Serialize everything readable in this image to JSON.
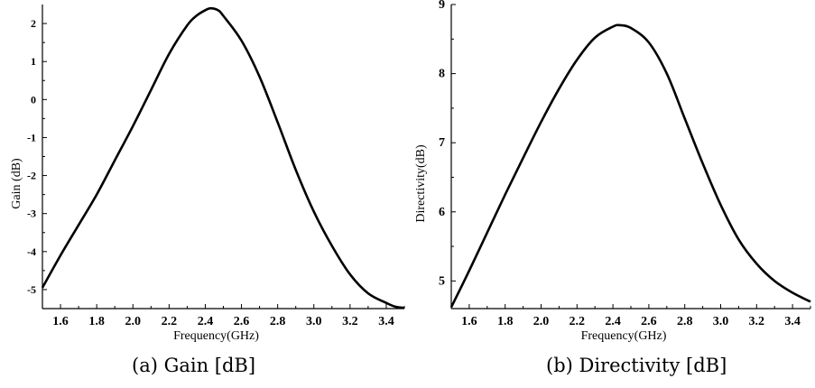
{
  "chart_data": [
    {
      "type": "line",
      "title": "",
      "xlabel": "Frequency(GHz)",
      "ylabel": "Gain (dB)",
      "xlim": [
        1.5,
        3.5
      ],
      "ylim": [
        -5.5,
        2.5
      ],
      "xticks": [
        "1.6",
        "1.8",
        "2.0",
        "2.2",
        "2.4",
        "2.6",
        "2.8",
        "3.0",
        "3.2",
        "3.4"
      ],
      "yticks": [
        "-5",
        "-4",
        "-3",
        "-2",
        "-1",
        "0",
        "1",
        "2"
      ],
      "grid": false,
      "series": [
        {
          "x": [
            1.5,
            1.6,
            1.7,
            1.8,
            1.9,
            2.0,
            2.1,
            2.2,
            2.3,
            2.35,
            2.4,
            2.43,
            2.47,
            2.5,
            2.6,
            2.7,
            2.8,
            2.9,
            3.0,
            3.1,
            3.2,
            3.3,
            3.4,
            3.45,
            3.5
          ],
          "y": [
            -4.95,
            -4.1,
            -3.3,
            -2.5,
            -1.6,
            -0.7,
            0.25,
            1.2,
            1.95,
            2.2,
            2.35,
            2.4,
            2.35,
            2.2,
            1.55,
            0.6,
            -0.6,
            -1.85,
            -2.95,
            -3.85,
            -4.6,
            -5.1,
            -5.35,
            -5.45,
            -5.48
          ]
        }
      ]
    },
    {
      "type": "line",
      "title": "",
      "xlabel": "Frequency(GHz)",
      "ylabel": "Directivity(dB)",
      "xlim": [
        1.5,
        3.5
      ],
      "ylim": [
        4.6,
        9.0
      ],
      "xticks": [
        "1.6",
        "1.8",
        "2.0",
        "2.2",
        "2.4",
        "2.6",
        "2.8",
        "3.0",
        "3.2",
        "3.4"
      ],
      "yticks": [
        "5",
        "6",
        "7",
        "8",
        "9"
      ],
      "grid": false,
      "series": [
        {
          "x": [
            1.5,
            1.6,
            1.7,
            1.8,
            1.9,
            2.0,
            2.1,
            2.2,
            2.3,
            2.4,
            2.44,
            2.5,
            2.6,
            2.7,
            2.8,
            2.9,
            3.0,
            3.1,
            3.2,
            3.3,
            3.4,
            3.5
          ],
          "y": [
            4.62,
            5.15,
            5.7,
            6.25,
            6.78,
            7.3,
            7.78,
            8.2,
            8.52,
            8.68,
            8.7,
            8.66,
            8.45,
            8.0,
            7.35,
            6.7,
            6.1,
            5.6,
            5.25,
            5.0,
            4.83,
            4.7
          ]
        }
      ]
    }
  ],
  "captions": {
    "a": "(a) Gain [dB]",
    "b": "(b) Directivity [dB]"
  }
}
